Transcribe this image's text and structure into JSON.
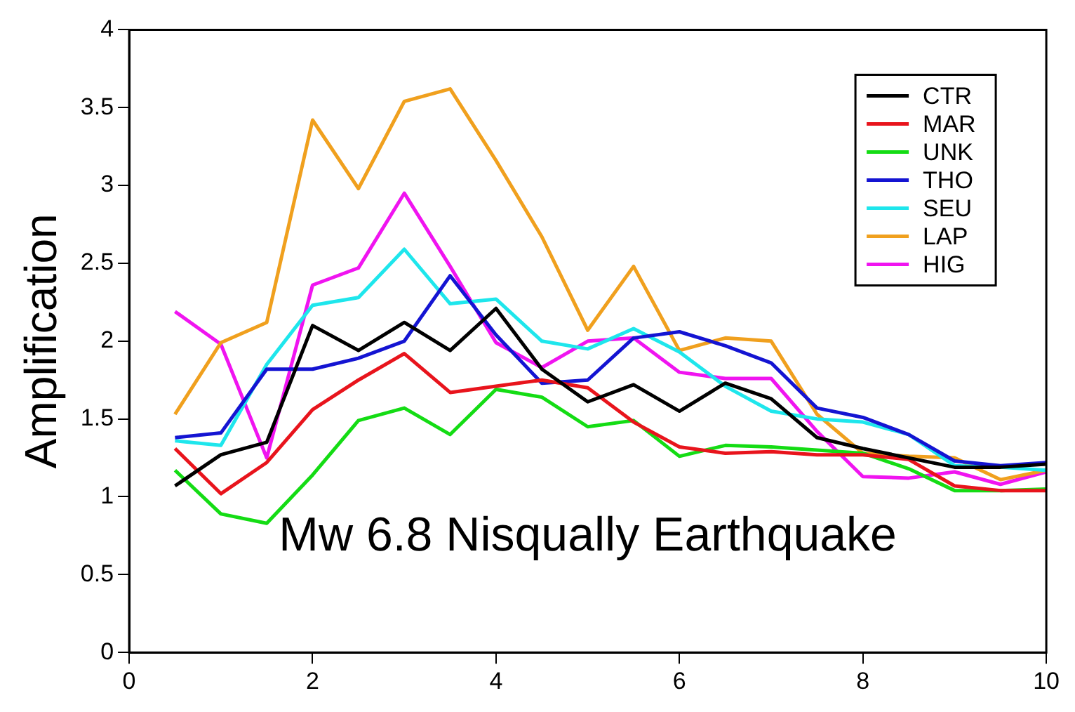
{
  "chart_data": {
    "type": "line",
    "ylabel": "Amplification",
    "annotations": [
      "Mw 6.8 Nisqually Earthquake"
    ],
    "x": [
      0.5,
      1,
      1.5,
      2,
      2.5,
      3,
      3.5,
      4,
      4.5,
      5,
      5.5,
      6,
      6.5,
      7,
      7.5,
      8,
      8.5,
      9,
      9.5,
      10
    ],
    "xlim": [
      0,
      10
    ],
    "xticks": [
      0,
      2,
      4,
      6,
      8,
      10
    ],
    "ylim": [
      0,
      4
    ],
    "yticks": [
      0,
      0.5,
      1,
      1.5,
      2,
      2.5,
      3,
      3.5,
      4
    ],
    "grid": false,
    "legend": "top right",
    "marker": "none",
    "line_style": "solid",
    "series": [
      {
        "name": "CTR",
        "color": "#000000",
        "values": [
          1.07,
          1.27,
          1.35,
          2.1,
          1.94,
          2.12,
          1.94,
          2.21,
          1.82,
          1.61,
          1.72,
          1.55,
          1.73,
          1.63,
          1.38,
          1.31,
          1.25,
          1.19,
          1.19,
          1.21
        ]
      },
      {
        "name": "MAR",
        "color": "#e8141c",
        "values": [
          1.31,
          1.02,
          1.22,
          1.56,
          1.75,
          1.92,
          1.67,
          1.71,
          1.75,
          1.7,
          1.48,
          1.32,
          1.28,
          1.29,
          1.27,
          1.27,
          1.24,
          1.07,
          1.04,
          1.04
        ]
      },
      {
        "name": "UNK",
        "color": "#14dc14",
        "values": [
          1.17,
          0.89,
          0.83,
          1.14,
          1.49,
          1.57,
          1.4,
          1.69,
          1.64,
          1.45,
          1.49,
          1.26,
          1.33,
          1.32,
          1.3,
          1.28,
          1.18,
          1.04,
          1.04,
          1.05
        ]
      },
      {
        "name": "THO",
        "color": "#1414d2",
        "values": [
          1.38,
          1.41,
          1.82,
          1.82,
          1.89,
          2.0,
          2.42,
          2.04,
          1.73,
          1.75,
          2.02,
          2.06,
          1.97,
          1.86,
          1.57,
          1.51,
          1.4,
          1.23,
          1.2,
          1.22
        ]
      },
      {
        "name": "SEU",
        "color": "#1ee6ec",
        "values": [
          1.36,
          1.33,
          1.85,
          2.23,
          2.28,
          2.59,
          2.24,
          2.27,
          2.0,
          1.95,
          2.08,
          1.93,
          1.71,
          1.55,
          1.5,
          1.48,
          1.4,
          1.2,
          1.19,
          1.17
        ]
      },
      {
        "name": "LAP",
        "color": "#f0a01e",
        "values": [
          1.53,
          1.99,
          2.12,
          3.42,
          2.98,
          3.54,
          3.62,
          3.16,
          2.67,
          2.07,
          2.48,
          1.94,
          2.02,
          2.0,
          1.53,
          1.28,
          1.26,
          1.25,
          1.11,
          1.17
        ]
      },
      {
        "name": "HIG",
        "color": "#f014f0",
        "values": [
          2.19,
          1.98,
          1.25,
          2.36,
          2.47,
          2.95,
          2.48,
          1.99,
          1.83,
          2.0,
          2.02,
          1.8,
          1.76,
          1.76,
          1.42,
          1.13,
          1.12,
          1.16,
          1.08,
          1.16
        ]
      }
    ]
  }
}
